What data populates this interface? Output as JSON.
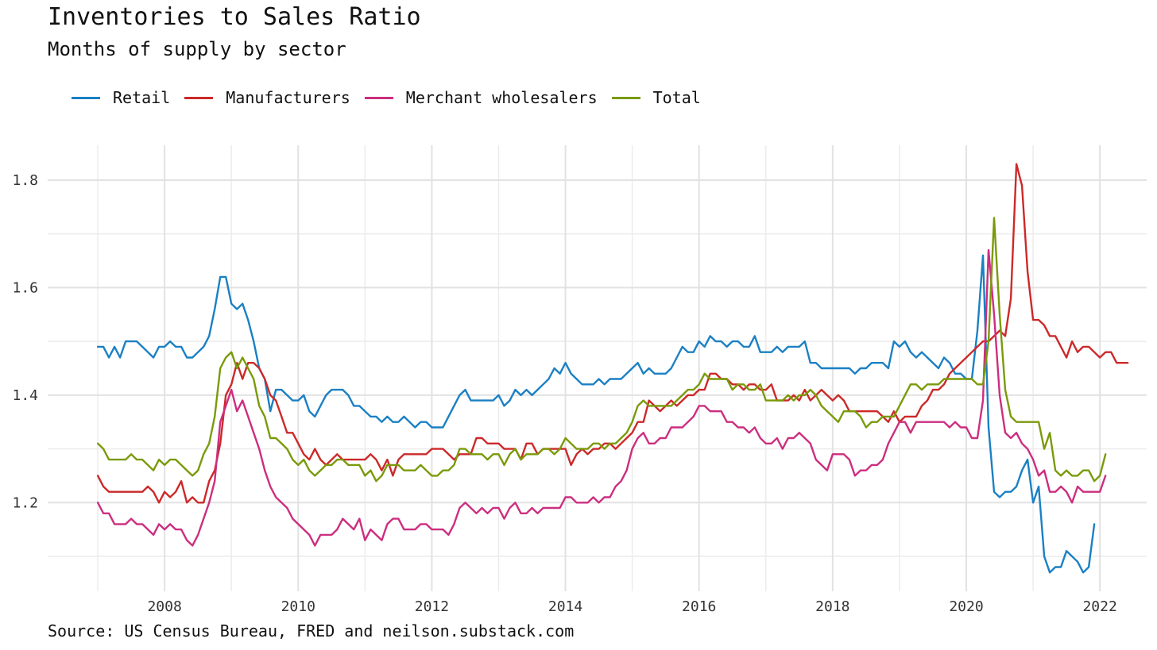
{
  "header": {
    "title": "Inventories to Sales Ratio",
    "subtitle": "Months of supply by sector"
  },
  "legend": [
    {
      "name": "Retail",
      "color": "#1a80c4"
    },
    {
      "name": "Manufacturers",
      "color": "#cc2929"
    },
    {
      "name": "Merchant wholesalers",
      "color": "#cc2e7f"
    },
    {
      "name": "Total",
      "color": "#7a9a0a"
    }
  ],
  "caption": "Source: US Census Bureau, FRED and neilson.substack.com",
  "chart_data": {
    "type": "line",
    "title": "Inventories to Sales Ratio",
    "subtitle": "Months of supply by sector",
    "xlabel": "",
    "ylabel": "",
    "x_start": 2007.0,
    "x_step_months": 1,
    "xlim": [
      2006.25,
      2022.7
    ],
    "ylim": [
      1.035,
      1.865
    ],
    "x_ticks": [
      2008,
      2010,
      2012,
      2014,
      2016,
      2018,
      2020,
      2022
    ],
    "y_ticks": [
      1.2,
      1.4,
      1.6,
      1.8
    ],
    "grid": true,
    "legend_position": "top-left",
    "series": [
      {
        "name": "Retail",
        "color": "#1a80c4",
        "values": [
          1.49,
          1.49,
          1.47,
          1.49,
          1.47,
          1.5,
          1.5,
          1.5,
          1.49,
          1.48,
          1.47,
          1.49,
          1.49,
          1.5,
          1.49,
          1.49,
          1.47,
          1.47,
          1.48,
          1.49,
          1.51,
          1.56,
          1.62,
          1.62,
          1.57,
          1.56,
          1.57,
          1.54,
          1.5,
          1.45,
          1.43,
          1.37,
          1.41,
          1.41,
          1.4,
          1.39,
          1.39,
          1.4,
          1.37,
          1.36,
          1.38,
          1.4,
          1.41,
          1.41,
          1.41,
          1.4,
          1.38,
          1.38,
          1.37,
          1.36,
          1.36,
          1.35,
          1.36,
          1.35,
          1.35,
          1.36,
          1.35,
          1.34,
          1.35,
          1.35,
          1.34,
          1.34,
          1.34,
          1.36,
          1.38,
          1.4,
          1.41,
          1.39,
          1.39,
          1.39,
          1.39,
          1.39,
          1.4,
          1.38,
          1.39,
          1.41,
          1.4,
          1.41,
          1.4,
          1.41,
          1.42,
          1.43,
          1.45,
          1.44,
          1.46,
          1.44,
          1.43,
          1.42,
          1.42,
          1.42,
          1.43,
          1.42,
          1.43,
          1.43,
          1.43,
          1.44,
          1.45,
          1.46,
          1.44,
          1.45,
          1.44,
          1.44,
          1.44,
          1.45,
          1.47,
          1.49,
          1.48,
          1.48,
          1.5,
          1.49,
          1.51,
          1.5,
          1.5,
          1.49,
          1.5,
          1.5,
          1.49,
          1.49,
          1.51,
          1.48,
          1.48,
          1.48,
          1.49,
          1.48,
          1.49,
          1.49,
          1.49,
          1.5,
          1.46,
          1.46,
          1.45,
          1.45,
          1.45,
          1.45,
          1.45,
          1.45,
          1.44,
          1.45,
          1.45,
          1.46,
          1.46,
          1.46,
          1.45,
          1.5,
          1.49,
          1.5,
          1.48,
          1.47,
          1.48,
          1.47,
          1.46,
          1.45,
          1.47,
          1.46,
          1.44,
          1.44,
          1.43,
          1.43,
          1.52,
          1.66,
          1.34,
          1.22,
          1.21,
          1.22,
          1.22,
          1.23,
          1.26,
          1.28,
          1.2,
          1.23,
          1.1,
          1.07,
          1.08,
          1.08,
          1.11,
          1.1,
          1.09,
          1.07,
          1.08,
          1.16
        ]
      },
      {
        "name": "Manufacturers",
        "color": "#cc2929",
        "values": [
          1.25,
          1.23,
          1.22,
          1.22,
          1.22,
          1.22,
          1.22,
          1.22,
          1.22,
          1.23,
          1.22,
          1.2,
          1.22,
          1.21,
          1.22,
          1.24,
          1.2,
          1.21,
          1.2,
          1.2,
          1.24,
          1.26,
          1.31,
          1.4,
          1.42,
          1.46,
          1.43,
          1.46,
          1.46,
          1.45,
          1.43,
          1.4,
          1.39,
          1.36,
          1.33,
          1.33,
          1.31,
          1.29,
          1.28,
          1.3,
          1.28,
          1.27,
          1.28,
          1.29,
          1.28,
          1.28,
          1.28,
          1.28,
          1.28,
          1.29,
          1.28,
          1.26,
          1.28,
          1.25,
          1.28,
          1.29,
          1.29,
          1.29,
          1.29,
          1.29,
          1.3,
          1.3,
          1.3,
          1.29,
          1.28,
          1.29,
          1.29,
          1.29,
          1.32,
          1.32,
          1.31,
          1.31,
          1.31,
          1.3,
          1.3,
          1.3,
          1.28,
          1.31,
          1.31,
          1.29,
          1.3,
          1.3,
          1.3,
          1.3,
          1.3,
          1.27,
          1.29,
          1.3,
          1.29,
          1.3,
          1.3,
          1.31,
          1.31,
          1.3,
          1.31,
          1.32,
          1.33,
          1.35,
          1.35,
          1.39,
          1.38,
          1.37,
          1.38,
          1.39,
          1.38,
          1.39,
          1.4,
          1.4,
          1.41,
          1.41,
          1.44,
          1.44,
          1.43,
          1.43,
          1.42,
          1.42,
          1.41,
          1.42,
          1.42,
          1.41,
          1.41,
          1.42,
          1.39,
          1.39,
          1.39,
          1.4,
          1.39,
          1.41,
          1.39,
          1.4,
          1.41,
          1.4,
          1.39,
          1.4,
          1.39,
          1.37,
          1.37,
          1.37,
          1.37,
          1.37,
          1.37,
          1.36,
          1.35,
          1.37,
          1.35,
          1.36,
          1.36,
          1.36,
          1.38,
          1.39,
          1.41,
          1.41,
          1.42,
          1.44,
          1.45,
          1.46,
          1.47,
          1.48,
          1.49,
          1.5,
          1.5,
          1.51,
          1.52,
          1.51,
          1.58,
          1.83,
          1.79,
          1.63,
          1.54,
          1.54,
          1.53,
          1.51,
          1.51,
          1.49,
          1.47,
          1.5,
          1.48,
          1.49,
          1.49,
          1.48,
          1.47,
          1.48,
          1.48,
          1.46,
          1.46,
          1.46
        ]
      },
      {
        "name": "Merchant wholesalers",
        "color": "#cc2e7f",
        "values": [
          1.2,
          1.18,
          1.18,
          1.16,
          1.16,
          1.16,
          1.17,
          1.16,
          1.16,
          1.15,
          1.14,
          1.16,
          1.15,
          1.16,
          1.15,
          1.15,
          1.13,
          1.12,
          1.14,
          1.17,
          1.2,
          1.24,
          1.35,
          1.38,
          1.41,
          1.37,
          1.39,
          1.36,
          1.33,
          1.3,
          1.26,
          1.23,
          1.21,
          1.2,
          1.19,
          1.17,
          1.16,
          1.15,
          1.14,
          1.12,
          1.14,
          1.14,
          1.14,
          1.15,
          1.17,
          1.16,
          1.15,
          1.17,
          1.13,
          1.15,
          1.14,
          1.13,
          1.16,
          1.17,
          1.17,
          1.15,
          1.15,
          1.15,
          1.16,
          1.16,
          1.15,
          1.15,
          1.15,
          1.14,
          1.16,
          1.19,
          1.2,
          1.19,
          1.18,
          1.19,
          1.18,
          1.19,
          1.19,
          1.17,
          1.19,
          1.2,
          1.18,
          1.18,
          1.19,
          1.18,
          1.19,
          1.19,
          1.19,
          1.19,
          1.21,
          1.21,
          1.2,
          1.2,
          1.2,
          1.21,
          1.2,
          1.21,
          1.21,
          1.23,
          1.24,
          1.26,
          1.3,
          1.32,
          1.33,
          1.31,
          1.31,
          1.32,
          1.32,
          1.34,
          1.34,
          1.34,
          1.35,
          1.36,
          1.38,
          1.38,
          1.37,
          1.37,
          1.37,
          1.35,
          1.35,
          1.34,
          1.34,
          1.33,
          1.34,
          1.32,
          1.31,
          1.31,
          1.32,
          1.3,
          1.32,
          1.32,
          1.33,
          1.32,
          1.31,
          1.28,
          1.27,
          1.26,
          1.29,
          1.29,
          1.29,
          1.28,
          1.25,
          1.26,
          1.26,
          1.27,
          1.27,
          1.28,
          1.31,
          1.33,
          1.35,
          1.35,
          1.33,
          1.35,
          1.35,
          1.35,
          1.35,
          1.35,
          1.35,
          1.34,
          1.35,
          1.34,
          1.34,
          1.32,
          1.32,
          1.39,
          1.67,
          1.55,
          1.4,
          1.33,
          1.32,
          1.33,
          1.31,
          1.3,
          1.28,
          1.25,
          1.26,
          1.22,
          1.22,
          1.23,
          1.22,
          1.2,
          1.23,
          1.22,
          1.22,
          1.22,
          1.22,
          1.25
        ]
      },
      {
        "name": "Total",
        "color": "#7a9a0a",
        "values": [
          1.31,
          1.3,
          1.28,
          1.28,
          1.28,
          1.28,
          1.29,
          1.28,
          1.28,
          1.27,
          1.26,
          1.28,
          1.27,
          1.28,
          1.28,
          1.27,
          1.26,
          1.25,
          1.26,
          1.29,
          1.31,
          1.36,
          1.45,
          1.47,
          1.48,
          1.45,
          1.47,
          1.45,
          1.43,
          1.38,
          1.36,
          1.32,
          1.32,
          1.31,
          1.3,
          1.28,
          1.27,
          1.28,
          1.26,
          1.25,
          1.26,
          1.27,
          1.27,
          1.28,
          1.28,
          1.27,
          1.27,
          1.27,
          1.25,
          1.26,
          1.24,
          1.25,
          1.27,
          1.27,
          1.27,
          1.26,
          1.26,
          1.26,
          1.27,
          1.26,
          1.25,
          1.25,
          1.26,
          1.26,
          1.27,
          1.3,
          1.3,
          1.29,
          1.29,
          1.29,
          1.28,
          1.29,
          1.29,
          1.27,
          1.29,
          1.3,
          1.28,
          1.29,
          1.29,
          1.29,
          1.3,
          1.3,
          1.29,
          1.3,
          1.32,
          1.31,
          1.3,
          1.3,
          1.3,
          1.31,
          1.31,
          1.3,
          1.31,
          1.31,
          1.32,
          1.33,
          1.35,
          1.38,
          1.39,
          1.38,
          1.38,
          1.38,
          1.38,
          1.38,
          1.39,
          1.4,
          1.41,
          1.41,
          1.42,
          1.44,
          1.43,
          1.43,
          1.43,
          1.43,
          1.41,
          1.42,
          1.42,
          1.41,
          1.41,
          1.42,
          1.39,
          1.39,
          1.39,
          1.39,
          1.4,
          1.39,
          1.4,
          1.4,
          1.41,
          1.4,
          1.38,
          1.37,
          1.36,
          1.35,
          1.37,
          1.37,
          1.37,
          1.36,
          1.34,
          1.35,
          1.35,
          1.36,
          1.36,
          1.36,
          1.38,
          1.4,
          1.42,
          1.42,
          1.41,
          1.42,
          1.42,
          1.42,
          1.43,
          1.43,
          1.43,
          1.43,
          1.43,
          1.43,
          1.42,
          1.42,
          1.5,
          1.73,
          1.55,
          1.41,
          1.36,
          1.35,
          1.35,
          1.35,
          1.35,
          1.35,
          1.3,
          1.33,
          1.26,
          1.25,
          1.26,
          1.25,
          1.25,
          1.26,
          1.26,
          1.24,
          1.25,
          1.29
        ]
      }
    ]
  }
}
